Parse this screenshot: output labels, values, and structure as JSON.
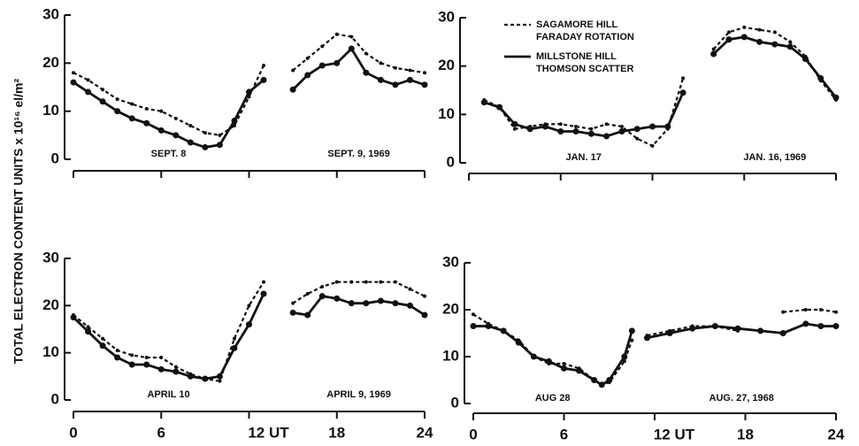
{
  "ylabel": "TOTAL ELECTRON CONTENT UNITS x 10¹⁶ el/m²",
  "chart_data": [
    {
      "type": "line",
      "xlim": [
        0,
        24
      ],
      "xticks": [
        0,
        6,
        12,
        18,
        24
      ],
      "xtick_labels": false,
      "ylim": [
        0,
        30
      ],
      "yticks": [
        0,
        10,
        20,
        30
      ],
      "x": [
        0,
        1,
        2,
        3,
        4,
        5,
        6,
        7,
        8,
        9,
        10,
        11,
        12,
        13,
        14,
        15,
        16,
        17,
        18,
        19,
        20,
        21,
        22,
        23,
        24
      ],
      "annotations": [
        "SEPT. 8",
        "SEPT. 9, 1969"
      ],
      "series": [
        {
          "name": "SAGAMORE HILL\nFARADAY ROTATION",
          "color": "#111",
          "dash": true,
          "values": [
            18,
            16.5,
            14.5,
            12.5,
            11.5,
            10.5,
            10,
            8.5,
            7,
            5.5,
            5,
            7,
            13,
            19.5,
            null,
            18.5,
            21,
            23.5,
            26,
            25.5,
            22,
            20,
            19,
            18.5,
            18
          ]
        },
        {
          "name": "MILLSTONE HILL\nTHOMSON SCATTER",
          "color": "#111",
          "dash": false,
          "values": [
            16,
            14,
            12,
            10,
            8.5,
            7.5,
            6,
            5,
            3.5,
            2.5,
            3,
            8,
            14,
            16.5,
            null,
            14.5,
            17.5,
            19.5,
            20,
            23,
            18,
            16.5,
            15.5,
            16.5,
            15.5
          ]
        }
      ]
    },
    {
      "type": "line",
      "xlim": [
        0,
        24
      ],
      "xticks": [
        0,
        6,
        12,
        18,
        24
      ],
      "xtick_labels": false,
      "ylim": [
        0,
        30
      ],
      "yticks": [
        0,
        10,
        20,
        30
      ],
      "legend": "top",
      "x": [
        1,
        2,
        3,
        4,
        5,
        6,
        7,
        8,
        9,
        10,
        11,
        12,
        13,
        14,
        15,
        16,
        17,
        18,
        19,
        20,
        21,
        22,
        23,
        24
      ],
      "annotations": [
        "JAN. 17",
        "JAN. 16, 1969"
      ],
      "series": [
        {
          "name": "SAGAMORE HILL\nFARADAY ROTATION",
          "color": "#111",
          "dash": true,
          "values": [
            13,
            11.5,
            7,
            7.5,
            8,
            8,
            7.5,
            7,
            8,
            7.5,
            5,
            3.5,
            7,
            17.5,
            null,
            23.5,
            27,
            28,
            27.5,
            27,
            25,
            22,
            17,
            13
          ]
        },
        {
          "name": "MILLSTONE HILL\nTHOMSON SCATTER",
          "color": "#111",
          "dash": false,
          "values": [
            12.5,
            11.5,
            8,
            7,
            7.5,
            6.5,
            6.5,
            6,
            5.5,
            6.5,
            7,
            7.5,
            7.5,
            14.5,
            null,
            22.5,
            25.5,
            26,
            25,
            24.5,
            24,
            21.5,
            17.5,
            13.5
          ]
        }
      ]
    },
    {
      "type": "line",
      "xlim": [
        0,
        24
      ],
      "xticks": [
        0,
        6,
        {
          "value": 12,
          "label": "12 UT"
        },
        18,
        24
      ],
      "xtick_labels": true,
      "ylim": [
        0,
        30
      ],
      "yticks": [
        0,
        10,
        20,
        30
      ],
      "x": [
        0,
        1,
        2,
        3,
        4,
        5,
        6,
        7,
        8,
        9,
        10,
        11,
        12,
        13,
        14,
        15,
        16,
        17,
        18,
        19,
        20,
        21,
        22,
        23,
        24
      ],
      "annotations": [
        "APRIL 10",
        "APRIL 9, 1969"
      ],
      "series": [
        {
          "name": "SAGAMORE HILL\nFARADAY ROTATION",
          "color": "#111",
          "dash": true,
          "values": [
            18,
            15.5,
            13,
            10.5,
            9.5,
            9,
            9,
            7,
            5.5,
            4.5,
            4,
            13,
            20,
            25,
            null,
            20.5,
            22.5,
            24,
            25,
            25,
            25,
            25,
            25,
            23.5,
            22
          ]
        },
        {
          "name": "MILLSTONE HILL\nTHOMSON SCATTER",
          "color": "#111",
          "dash": false,
          "values": [
            17.5,
            14.5,
            11.5,
            9,
            7.5,
            7.5,
            6.5,
            6,
            5,
            4.5,
            5,
            11,
            16,
            22.5,
            null,
            18.5,
            18,
            22,
            21.5,
            20.5,
            20.5,
            21,
            20.5,
            20,
            18
          ]
        }
      ]
    },
    {
      "type": "line",
      "xlim": [
        0,
        24
      ],
      "xticks": [
        0,
        6,
        {
          "value": 12,
          "label": "12 UT"
        },
        18,
        24
      ],
      "xtick_labels": true,
      "ylim": [
        0,
        30
      ],
      "yticks": [
        0,
        10,
        20,
        30
      ],
      "x": [
        0,
        1,
        2,
        3,
        4,
        5,
        6,
        7,
        8,
        8.5,
        9,
        10,
        10.5,
        11,
        11.5,
        13,
        14.5,
        16,
        17.5,
        19,
        20.5,
        22,
        23,
        24
      ],
      "annotations": [
        "AUG 28",
        "AUG. 27, 1968"
      ],
      "series": [
        {
          "name": "SAGAMORE HILL\nFARADAY ROTATION",
          "color": "#111",
          "dash": true,
          "values": [
            19,
            17,
            15.5,
            13.5,
            10,
            8.5,
            8.5,
            7.5,
            5,
            4,
            4.5,
            9,
            13.5,
            null,
            14.5,
            15.5,
            16.5,
            16.5,
            15.5,
            null,
            19.5,
            20,
            20,
            19.5
          ]
        },
        {
          "name": "MILLSTONE HILL\nTHOMSON SCATTER",
          "color": "#111",
          "dash": false,
          "values": [
            16.5,
            16.5,
            15.5,
            13,
            10,
            9,
            7.5,
            7,
            5,
            4,
            5,
            10,
            15.5,
            null,
            14,
            15,
            16,
            16.5,
            16,
            15.5,
            15,
            17,
            16.5,
            16.5
          ]
        }
      ]
    }
  ]
}
